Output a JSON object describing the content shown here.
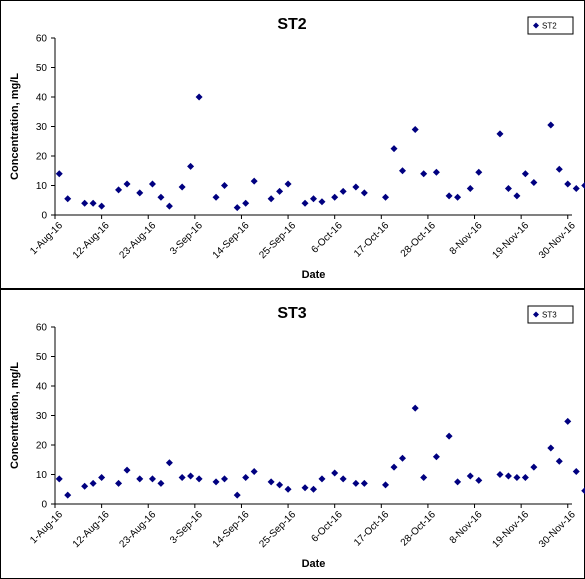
{
  "chart_data": [
    {
      "type": "scatter",
      "title": "ST2",
      "xlabel": "Date",
      "ylabel": "Concentration, mg/L",
      "ylim": [
        0,
        60
      ],
      "yticks": [
        "0",
        "10",
        "20",
        "30",
        "40",
        "50",
        "60"
      ],
      "xlim": [
        "2016-08-01",
        "2016-12-01"
      ],
      "xticks": [
        "1-Aug-16",
        "12-Aug-16",
        "23-Aug-16",
        "3-Sep-16",
        "14-Sep-16",
        "25-Sep-16",
        "6-Oct-16",
        "17-Oct-16",
        "28-Oct-16",
        "8-Nov-16",
        "19-Nov-16",
        "30-Nov-16"
      ],
      "legend": "top-right",
      "color": "#000080",
      "series": [
        {
          "name": "ST2",
          "x": [
            "2016-08-02",
            "2016-08-04",
            "2016-08-08",
            "2016-08-10",
            "2016-08-12",
            "2016-08-16",
            "2016-08-18",
            "2016-08-21",
            "2016-08-24",
            "2016-08-26",
            "2016-08-28",
            "2016-08-31",
            "2016-09-02",
            "2016-09-04",
            "2016-09-08",
            "2016-09-10",
            "2016-09-13",
            "2016-09-15",
            "2016-09-17",
            "2016-09-21",
            "2016-09-23",
            "2016-09-25",
            "2016-09-29",
            "2016-10-01",
            "2016-10-03",
            "2016-10-06",
            "2016-10-08",
            "2016-10-11",
            "2016-10-13",
            "2016-10-18",
            "2016-10-20",
            "2016-10-22",
            "2016-10-25",
            "2016-10-27",
            "2016-10-30",
            "2016-11-02",
            "2016-11-04",
            "2016-11-07",
            "2016-11-09",
            "2016-11-14",
            "2016-11-16",
            "2016-11-18",
            "2016-11-20",
            "2016-11-22",
            "2016-11-26",
            "2016-11-28",
            "2016-11-30",
            "2016-12-02",
            "2016-12-04",
            "2016-12-05"
          ],
          "y": [
            14,
            5.5,
            4,
            4,
            3,
            8.5,
            10.5,
            7.5,
            10.5,
            6,
            3,
            9.5,
            16.5,
            40,
            6,
            10,
            2.5,
            4,
            11.5,
            5.5,
            8,
            10.5,
            4,
            5.5,
            4.5,
            6,
            8,
            9.5,
            7.5,
            6,
            22.5,
            15,
            29,
            14,
            14.5,
            6.5,
            6,
            9,
            14.5,
            27.5,
            9,
            6.5,
            14,
            11,
            30.5,
            15.5,
            10.5,
            9,
            10,
            9.5
          ]
        }
      ]
    },
    {
      "type": "scatter",
      "title": "ST3",
      "xlabel": "Date",
      "ylabel": "Concentration, mg/L",
      "ylim": [
        0,
        60
      ],
      "yticks": [
        "0",
        "10",
        "20",
        "30",
        "40",
        "50",
        "60"
      ],
      "xlim": [
        "2016-08-01",
        "2016-12-01"
      ],
      "xticks": [
        "1-Aug-16",
        "12-Aug-16",
        "23-Aug-16",
        "3-Sep-16",
        "14-Sep-16",
        "25-Sep-16",
        "6-Oct-16",
        "17-Oct-16",
        "28-Oct-16",
        "8-Nov-16",
        "19-Nov-16",
        "30-Nov-16"
      ],
      "legend": "top-right",
      "color": "#000080",
      "series": [
        {
          "name": "ST3",
          "x": [
            "2016-08-02",
            "2016-08-04",
            "2016-08-08",
            "2016-08-10",
            "2016-08-12",
            "2016-08-16",
            "2016-08-18",
            "2016-08-21",
            "2016-08-24",
            "2016-08-26",
            "2016-08-28",
            "2016-08-31",
            "2016-09-02",
            "2016-09-04",
            "2016-09-08",
            "2016-09-10",
            "2016-09-13",
            "2016-09-15",
            "2016-09-17",
            "2016-09-21",
            "2016-09-23",
            "2016-09-25",
            "2016-09-29",
            "2016-10-01",
            "2016-10-03",
            "2016-10-06",
            "2016-10-08",
            "2016-10-11",
            "2016-10-13",
            "2016-10-18",
            "2016-10-20",
            "2016-10-22",
            "2016-10-25",
            "2016-10-27",
            "2016-10-30",
            "2016-11-02",
            "2016-11-04",
            "2016-11-07",
            "2016-11-09",
            "2016-11-14",
            "2016-11-16",
            "2016-11-18",
            "2016-11-20",
            "2016-11-22",
            "2016-11-26",
            "2016-11-28",
            "2016-11-30",
            "2016-12-02",
            "2016-12-04",
            "2016-12-05"
          ],
          "y": [
            8.5,
            3,
            6,
            7,
            9,
            7,
            11.5,
            8.5,
            8.5,
            7,
            14,
            9,
            9.5,
            8.5,
            7.5,
            8.5,
            3,
            9,
            11,
            7.5,
            6.5,
            5,
            5.5,
            5,
            8.5,
            10.5,
            8.5,
            7,
            7,
            6.5,
            12.5,
            15.5,
            32.5,
            9,
            16,
            23,
            7.5,
            9.5,
            8,
            10,
            9.5,
            9,
            9,
            12.5,
            19,
            14.5,
            28,
            11,
            4.5,
            12
          ]
        }
      ]
    }
  ]
}
